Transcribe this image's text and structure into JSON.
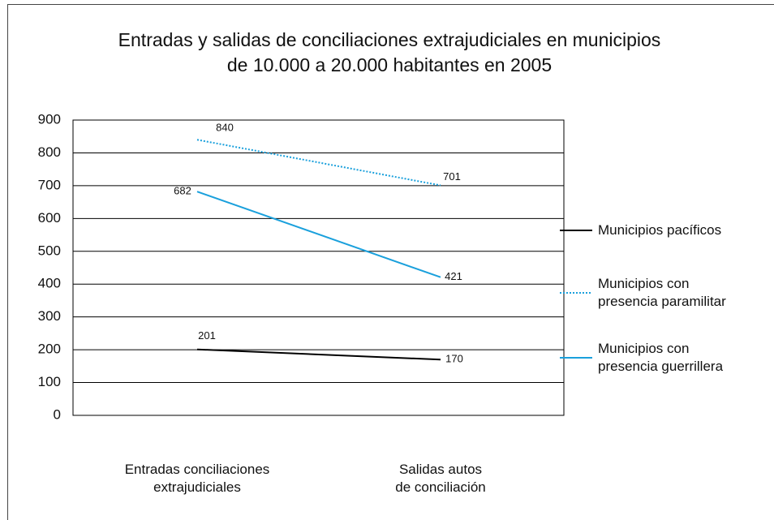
{
  "chart_data": {
    "type": "line",
    "title": "Entradas y salidas de conciliaciones extrajudiciales en municipios\nde 10.000 a 20.000 habitantes en 2005",
    "categories": [
      "Entradas conciliaciones\nextrajudiciales",
      "Salidas autos\nde conciliación"
    ],
    "series": [
      {
        "name": "Municipios pacíficos",
        "color": "#000000",
        "linestyle": "solid",
        "values": [
          201,
          170
        ]
      },
      {
        "name": "Municipios con\npresencia paramilitar",
        "color": "#1aa0dc",
        "linestyle": "dotted",
        "values": [
          840,
          701
        ]
      },
      {
        "name": "Municipios con\npresencia guerrillera",
        "color": "#1aa0dc",
        "linestyle": "solid",
        "values": [
          682,
          421
        ]
      }
    ],
    "ylim": [
      0,
      900
    ],
    "yticks": [
      0,
      100,
      200,
      300,
      400,
      500,
      600,
      700,
      800,
      900
    ],
    "grid": true,
    "legend": "right"
  }
}
